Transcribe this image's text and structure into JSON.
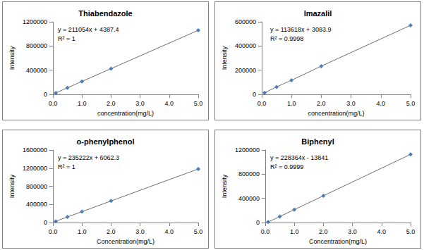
{
  "chart_data": [
    {
      "type": "line",
      "title": "Thiabendazole",
      "x_label": "concentration(mg/L)",
      "y_label": "Intensity",
      "annotations": [
        "y = 211054x + 4387.4",
        "R² = 1"
      ],
      "x": [
        0.1,
        0.5,
        1,
        2,
        5
      ],
      "values": [
        25000,
        110000,
        215000,
        426000,
        1060000
      ],
      "color": "#4a7ebb",
      "marker": "diamond",
      "xlim": [
        0,
        5
      ],
      "xticks": [
        {
          "value": 0,
          "label": "0.0"
        },
        {
          "value": 1,
          "label": "1.0"
        },
        {
          "value": 2,
          "label": "2.0"
        },
        {
          "value": 3,
          "label": "3.0"
        },
        {
          "value": 4,
          "label": "4.0"
        },
        {
          "value": 5,
          "label": "5.0"
        }
      ],
      "ylim": [
        0,
        1200000
      ],
      "yticks": [
        0,
        400000,
        800000,
        1200000
      ],
      "grid": false
    },
    {
      "type": "line",
      "title": "Imazalil",
      "x_label": "concentration(mg/L)",
      "y_label": "Intensity",
      "annotations": [
        "y = 113618x + 3083.9",
        "R² = 0.9998"
      ],
      "x": [
        0.1,
        0.5,
        1,
        2,
        5
      ],
      "values": [
        14000,
        62000,
        117000,
        234000,
        571000
      ],
      "color": "#4a7ebb",
      "marker": "diamond",
      "xlim": [
        0,
        5
      ],
      "xticks": [
        {
          "value": 0,
          "label": "0.0"
        },
        {
          "value": 1,
          "label": "1.0"
        },
        {
          "value": 2,
          "label": "2.0"
        },
        {
          "value": 3,
          "label": "3.0"
        },
        {
          "value": 4,
          "label": "4.0"
        },
        {
          "value": 5,
          "label": "5.0"
        }
      ],
      "ylim": [
        0,
        600000
      ],
      "yticks": [
        0,
        200000,
        400000,
        600000
      ],
      "grid": false
    },
    {
      "type": "line",
      "title": "o-phenylphenol",
      "x_label": "Concentration(mg/L)",
      "y_label": "Intensity",
      "annotations": [
        "y = 235222x + 6062.3",
        "R² = 1"
      ],
      "x": [
        0.1,
        0.5,
        1,
        2,
        5
      ],
      "values": [
        30000,
        124000,
        241000,
        477000,
        1182000
      ],
      "color": "#4a7ebb",
      "marker": "diamond",
      "xlim": [
        0,
        5
      ],
      "xticks": [
        {
          "value": 0,
          "label": "0.0"
        },
        {
          "value": 1,
          "label": "1.0"
        },
        {
          "value": 2,
          "label": "2.0"
        },
        {
          "value": 3,
          "label": "3.0"
        },
        {
          "value": 4,
          "label": "4.0"
        },
        {
          "value": 5,
          "label": "5.0"
        }
      ],
      "ylim": [
        0,
        1600000
      ],
      "yticks": [
        0,
        400000,
        800000,
        1200000,
        1600000
      ],
      "grid": false
    },
    {
      "type": "line",
      "title": "Biphenyl",
      "x_label": "Concentration(mg/L)",
      "y_label": "Intensity",
      "annotations": [
        "y = 228364x - 13841",
        "R² = 0.9999"
      ],
      "x": [
        0.1,
        0.5,
        1,
        2,
        5
      ],
      "values": [
        10000,
        100000,
        214000,
        443000,
        1128000
      ],
      "color": "#4a7ebb",
      "marker": "diamond",
      "xlim": [
        0,
        5
      ],
      "xticks": [
        {
          "value": 0,
          "label": "0.0"
        },
        {
          "value": 1,
          "label": "1.0"
        },
        {
          "value": 2,
          "label": "2.0"
        },
        {
          "value": 3,
          "label": "3.0"
        },
        {
          "value": 4,
          "label": "4.0"
        },
        {
          "value": 5,
          "label": "5.0"
        }
      ],
      "ylim": [
        0,
        1200000
      ],
      "yticks": [
        0,
        400000,
        800000,
        1200000
      ],
      "grid": false
    }
  ]
}
